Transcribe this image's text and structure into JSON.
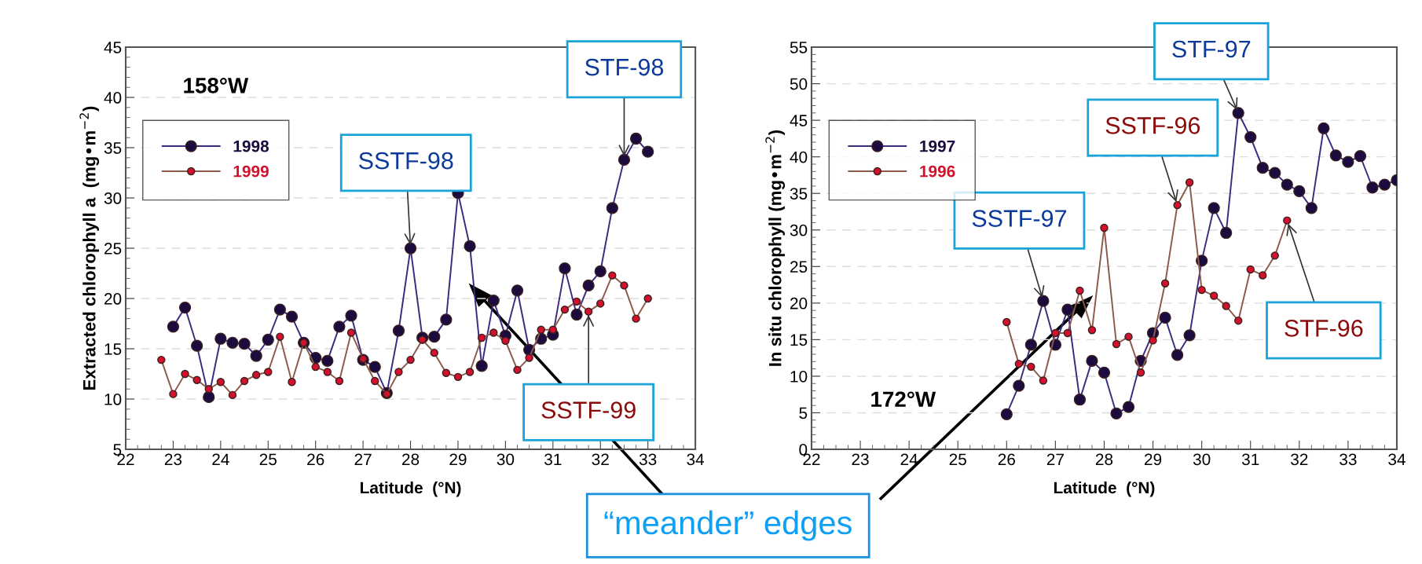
{
  "chart_data": [
    {
      "type": "line",
      "xlabel": "Latitude  (°N)",
      "ylabel": "Extracted chlorophyll a  (mg•m$^{−2}$)",
      "xlim": [
        22,
        34
      ],
      "xticks": [
        22,
        23,
        24,
        25,
        26,
        27,
        28,
        29,
        30,
        31,
        32,
        33,
        34
      ],
      "ylim": [
        5,
        45
      ],
      "yticks": [
        5,
        10,
        15,
        20,
        25,
        30,
        35,
        40,
        45
      ],
      "grid": "y",
      "legend": "top left",
      "marker": "circle",
      "line_style": "solid",
      "series": [
        {
          "name": "1998",
          "color": "#1c0b3f",
          "x": [
            23.0,
            23.25,
            23.5,
            23.75,
            24.0,
            24.25,
            24.5,
            24.75,
            25.0,
            25.25,
            25.5,
            25.75,
            26.0,
            26.25,
            26.5,
            26.75,
            27.0,
            27.25,
            27.5,
            27.75,
            28.0,
            28.25,
            28.5,
            28.75,
            29.0,
            29.25,
            29.5,
            29.75,
            30.0,
            30.25,
            30.5,
            30.75,
            31.0,
            31.25,
            31.5,
            31.75,
            32.0,
            32.25,
            32.5,
            32.75,
            33.0
          ],
          "values": [
            17.2,
            19.1,
            15.3,
            10.2,
            16.0,
            15.6,
            15.5,
            14.3,
            15.9,
            18.9,
            18.2,
            15.6,
            14.1,
            13.8,
            17.2,
            18.3,
            13.9,
            13.2,
            10.6,
            16.8,
            25.0,
            16.1,
            16.2,
            17.9,
            30.5,
            25.2,
            13.3,
            19.8,
            16.3,
            20.8,
            14.9,
            16.0,
            16.4,
            23.0,
            18.4,
            21.3,
            22.7,
            29.0,
            33.8,
            35.9,
            34.6
          ]
        },
        {
          "name": "1999",
          "color": "#d4112c",
          "x": [
            22.75,
            23.0,
            23.25,
            23.5,
            23.75,
            24.0,
            24.25,
            24.5,
            24.75,
            25.0,
            25.25,
            25.5,
            25.75,
            26.0,
            26.25,
            26.5,
            26.75,
            27.0,
            27.25,
            27.5,
            27.75,
            28.0,
            28.25,
            28.5,
            28.75,
            29.0,
            29.25,
            29.5,
            29.75,
            30.0,
            30.25,
            30.5,
            30.75,
            31.0,
            31.25,
            31.5,
            31.75,
            32.0,
            32.25,
            32.5,
            32.75,
            33.0
          ],
          "values": [
            13.9,
            10.5,
            12.5,
            11.9,
            11.0,
            11.7,
            10.4,
            11.8,
            12.4,
            12.7,
            16.2,
            11.7,
            15.6,
            13.2,
            12.7,
            11.8,
            16.6,
            14.0,
            11.8,
            10.5,
            12.7,
            13.9,
            15.9,
            14.6,
            12.6,
            12.2,
            12.7,
            16.1,
            16.6,
            15.8,
            12.9,
            14.1,
            16.9,
            16.9,
            18.9,
            19.7,
            18.7,
            19.5,
            22.3,
            21.3,
            18.0,
            20.0
          ]
        }
      ],
      "annotations": [
        "158°W",
        {
          "text": "SSTF-98",
          "x": 28.0,
          "y": 25.0
        },
        {
          "text": "STF-98",
          "x": 32.5,
          "y": 33.8
        },
        {
          "text": "SSTF-99",
          "x": 31.75,
          "y": 18.7
        },
        "“meander” edges"
      ]
    },
    {
      "type": "line",
      "xlabel": "Latitude  (°N)",
      "ylabel": "In situ chlorophyll (mg•m$^{−2}$)",
      "xlim": [
        22,
        34
      ],
      "xticks": [
        22,
        23,
        24,
        25,
        26,
        27,
        28,
        29,
        30,
        31,
        32,
        33,
        34
      ],
      "ylim": [
        0,
        55
      ],
      "yticks": [
        0,
        5,
        10,
        15,
        20,
        25,
        30,
        35,
        40,
        45,
        50,
        55
      ],
      "grid": "y",
      "legend": "top left",
      "marker": "circle",
      "line_style": "solid",
      "series": [
        {
          "name": "1997",
          "color": "#1c0b3f",
          "x": [
            26.0,
            26.25,
            26.5,
            26.75,
            27.0,
            27.25,
            27.5,
            27.75,
            28.0,
            28.25,
            28.5,
            28.75,
            29.0,
            29.25,
            29.5,
            29.75,
            30.0,
            30.25,
            30.5,
            30.75,
            31.0,
            31.25,
            31.5,
            31.75,
            32.0,
            32.25,
            32.5,
            32.75,
            33.0,
            33.25,
            33.5,
            33.75,
            34.0
          ],
          "values": [
            4.8,
            8.7,
            14.3,
            20.3,
            14.3,
            19.1,
            6.8,
            12.1,
            10.5,
            4.9,
            5.8,
            12.1,
            15.9,
            18.0,
            12.9,
            15.6,
            25.8,
            33.0,
            29.6,
            46.0,
            42.7,
            38.5,
            37.8,
            36.2,
            35.3,
            33.0,
            43.9,
            40.2,
            39.3,
            40.1,
            35.8,
            36.2,
            36.8
          ]
        },
        {
          "name": "1996",
          "color": "#d4112c",
          "x": [
            26.0,
            26.25,
            26.5,
            26.75,
            27.0,
            27.25,
            27.5,
            27.75,
            28.0,
            28.25,
            28.5,
            28.75,
            29.0,
            29.25,
            29.5,
            29.75,
            30.0,
            30.25,
            30.5,
            30.75,
            31.0,
            31.25,
            31.5,
            31.75
          ],
          "values": [
            17.4,
            11.7,
            11.3,
            9.4,
            15.9,
            15.9,
            21.7,
            16.3,
            30.3,
            14.4,
            15.4,
            10.5,
            14.9,
            22.7,
            33.4,
            36.5,
            21.8,
            21.0,
            19.6,
            17.6,
            24.6,
            23.8,
            26.5,
            31.3
          ]
        }
      ],
      "annotations": [
        "172°W",
        {
          "text": "SSTF-97",
          "x": 26.75,
          "y": 20.3
        },
        {
          "text": "STF-97",
          "x": 30.75,
          "y": 46.0
        },
        {
          "text": "SSTF-96",
          "x": 29.5,
          "y": 33.4
        },
        {
          "text": "STF-96",
          "x": 31.75,
          "y": 31.3
        }
      ]
    }
  ]
}
